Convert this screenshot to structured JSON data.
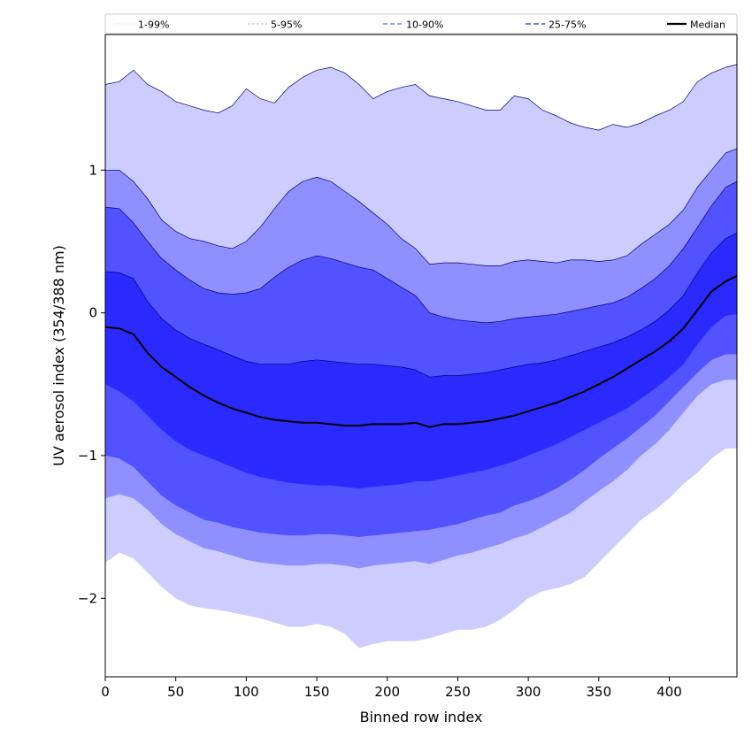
{
  "chart_data": {
    "type": "area",
    "title": "",
    "xlabel": "Binned row index",
    "ylabel": "UV aerosol index (354/388 nm)",
    "xlim": [
      0,
      448
    ],
    "ylim": [
      -2.55,
      1.95
    ],
    "x_ticks": [
      0,
      50,
      100,
      150,
      200,
      250,
      300,
      350,
      400
    ],
    "y_ticks": [
      -2,
      -1,
      0,
      1
    ],
    "y_tick_labels": [
      "−2",
      "−1",
      "0",
      "1"
    ],
    "grid": false,
    "legend_position": "top",
    "colors": {
      "band_1_99": "#ccccff",
      "band_5_95": "#8f8fff",
      "band_10_90": "#5252ff",
      "band_25_75": "#2a2aff",
      "median": "#000000",
      "edge": "#00007a"
    },
    "x": [
      0,
      10,
      20,
      30,
      40,
      50,
      60,
      70,
      80,
      90,
      100,
      110,
      120,
      130,
      140,
      150,
      160,
      170,
      180,
      190,
      200,
      210,
      220,
      230,
      240,
      250,
      260,
      270,
      280,
      290,
      300,
      310,
      320,
      330,
      340,
      350,
      360,
      370,
      380,
      390,
      400,
      410,
      420,
      430,
      440,
      448
    ],
    "series": [
      {
        "name": "1-99%",
        "lower": [
          -1.75,
          -1.68,
          -1.72,
          -1.82,
          -1.92,
          -2.0,
          -2.05,
          -2.07,
          -2.08,
          -2.1,
          -2.12,
          -2.14,
          -2.17,
          -2.2,
          -2.2,
          -2.18,
          -2.2,
          -2.25,
          -2.35,
          -2.32,
          -2.3,
          -2.3,
          -2.3,
          -2.28,
          -2.25,
          -2.22,
          -2.22,
          -2.2,
          -2.15,
          -2.08,
          -2.0,
          -1.95,
          -1.93,
          -1.9,
          -1.85,
          -1.75,
          -1.65,
          -1.55,
          -1.45,
          -1.38,
          -1.3,
          -1.2,
          -1.12,
          -1.02,
          -0.95,
          -0.95
        ],
        "upper": [
          1.6,
          1.62,
          1.7,
          1.6,
          1.55,
          1.48,
          1.45,
          1.42,
          1.4,
          1.45,
          1.57,
          1.5,
          1.47,
          1.58,
          1.65,
          1.7,
          1.72,
          1.68,
          1.6,
          1.5,
          1.55,
          1.58,
          1.6,
          1.52,
          1.5,
          1.48,
          1.45,
          1.42,
          1.42,
          1.52,
          1.5,
          1.42,
          1.38,
          1.33,
          1.3,
          1.28,
          1.32,
          1.3,
          1.33,
          1.38,
          1.42,
          1.48,
          1.62,
          1.68,
          1.72,
          1.74
        ]
      },
      {
        "name": "5-95%",
        "lower": [
          -1.3,
          -1.27,
          -1.3,
          -1.38,
          -1.48,
          -1.55,
          -1.6,
          -1.65,
          -1.67,
          -1.7,
          -1.73,
          -1.75,
          -1.76,
          -1.77,
          -1.77,
          -1.76,
          -1.76,
          -1.77,
          -1.79,
          -1.77,
          -1.76,
          -1.75,
          -1.74,
          -1.76,
          -1.73,
          -1.7,
          -1.68,
          -1.65,
          -1.62,
          -1.58,
          -1.55,
          -1.5,
          -1.45,
          -1.4,
          -1.32,
          -1.25,
          -1.18,
          -1.1,
          -1.0,
          -0.92,
          -0.82,
          -0.7,
          -0.58,
          -0.5,
          -0.47,
          -0.47
        ],
        "upper": [
          1.0,
          1.0,
          0.92,
          0.8,
          0.65,
          0.57,
          0.52,
          0.5,
          0.47,
          0.45,
          0.5,
          0.6,
          0.73,
          0.85,
          0.92,
          0.95,
          0.92,
          0.85,
          0.78,
          0.7,
          0.62,
          0.52,
          0.45,
          0.34,
          0.35,
          0.35,
          0.34,
          0.33,
          0.33,
          0.36,
          0.37,
          0.36,
          0.35,
          0.37,
          0.37,
          0.36,
          0.37,
          0.4,
          0.48,
          0.55,
          0.62,
          0.72,
          0.88,
          1.0,
          1.12,
          1.15
        ]
      },
      {
        "name": "10-90%",
        "lower": [
          -1.0,
          -1.02,
          -1.08,
          -1.18,
          -1.28,
          -1.35,
          -1.4,
          -1.45,
          -1.47,
          -1.5,
          -1.52,
          -1.54,
          -1.55,
          -1.56,
          -1.56,
          -1.55,
          -1.55,
          -1.56,
          -1.57,
          -1.56,
          -1.55,
          -1.54,
          -1.53,
          -1.52,
          -1.5,
          -1.48,
          -1.45,
          -1.42,
          -1.4,
          -1.35,
          -1.32,
          -1.28,
          -1.23,
          -1.17,
          -1.1,
          -1.02,
          -0.95,
          -0.88,
          -0.8,
          -0.72,
          -0.62,
          -0.52,
          -0.42,
          -0.33,
          -0.29,
          -0.29
        ],
        "upper": [
          0.74,
          0.73,
          0.63,
          0.5,
          0.38,
          0.3,
          0.23,
          0.17,
          0.14,
          0.13,
          0.14,
          0.17,
          0.25,
          0.32,
          0.37,
          0.4,
          0.38,
          0.35,
          0.32,
          0.3,
          0.24,
          0.18,
          0.12,
          0.0,
          -0.03,
          -0.05,
          -0.06,
          -0.07,
          -0.06,
          -0.04,
          -0.03,
          -0.02,
          -0.01,
          0.01,
          0.03,
          0.05,
          0.07,
          0.11,
          0.17,
          0.24,
          0.33,
          0.45,
          0.6,
          0.75,
          0.88,
          0.92
        ]
      },
      {
        "name": "25-75%",
        "lower": [
          -0.5,
          -0.55,
          -0.62,
          -0.72,
          -0.82,
          -0.9,
          -0.96,
          -1.0,
          -1.04,
          -1.08,
          -1.12,
          -1.15,
          -1.17,
          -1.19,
          -1.2,
          -1.21,
          -1.21,
          -1.22,
          -1.23,
          -1.22,
          -1.21,
          -1.2,
          -1.18,
          -1.18,
          -1.16,
          -1.14,
          -1.12,
          -1.1,
          -1.07,
          -1.04,
          -1.0,
          -0.96,
          -0.92,
          -0.87,
          -0.82,
          -0.77,
          -0.72,
          -0.67,
          -0.6,
          -0.53,
          -0.45,
          -0.36,
          -0.22,
          -0.1,
          -0.02,
          -0.01
        ],
        "upper": [
          0.29,
          0.28,
          0.24,
          0.08,
          -0.04,
          -0.12,
          -0.18,
          -0.22,
          -0.26,
          -0.3,
          -0.34,
          -0.36,
          -0.36,
          -0.36,
          -0.34,
          -0.33,
          -0.34,
          -0.35,
          -0.36,
          -0.36,
          -0.37,
          -0.38,
          -0.4,
          -0.45,
          -0.44,
          -0.44,
          -0.43,
          -0.42,
          -0.4,
          -0.38,
          -0.36,
          -0.35,
          -0.33,
          -0.3,
          -0.27,
          -0.24,
          -0.21,
          -0.17,
          -0.12,
          -0.06,
          0.02,
          0.12,
          0.28,
          0.42,
          0.52,
          0.56
        ]
      },
      {
        "name": "Median",
        "values": [
          -0.1,
          -0.11,
          -0.15,
          -0.28,
          -0.38,
          -0.45,
          -0.52,
          -0.58,
          -0.63,
          -0.67,
          -0.7,
          -0.73,
          -0.75,
          -0.76,
          -0.77,
          -0.77,
          -0.78,
          -0.79,
          -0.79,
          -0.78,
          -0.78,
          -0.78,
          -0.77,
          -0.8,
          -0.78,
          -0.78,
          -0.77,
          -0.76,
          -0.74,
          -0.72,
          -0.69,
          -0.66,
          -0.63,
          -0.59,
          -0.55,
          -0.5,
          -0.45,
          -0.39,
          -0.33,
          -0.27,
          -0.2,
          -0.11,
          0.02,
          0.15,
          0.22,
          0.26
        ]
      }
    ]
  }
}
